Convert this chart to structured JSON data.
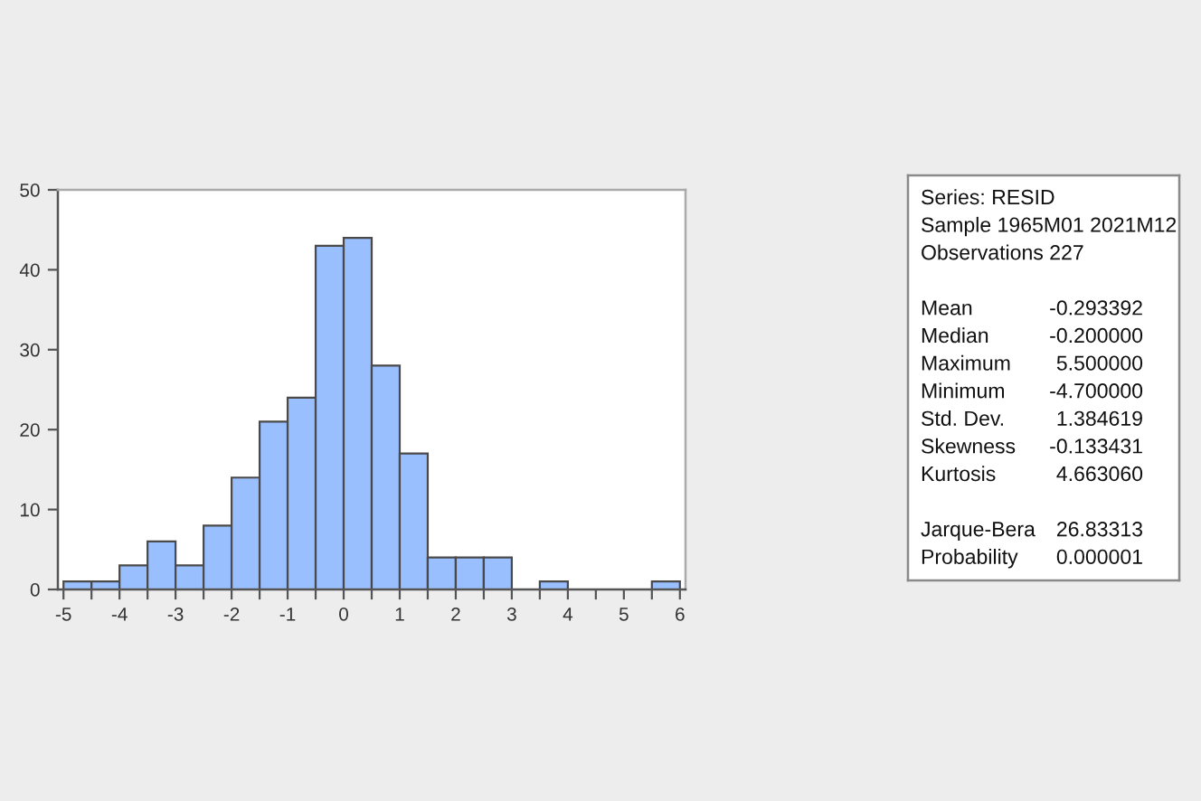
{
  "chart_data": [
    {
      "type": "histogram",
      "bins": [
        -5,
        -4.5,
        -4,
        -3.5,
        -3,
        -2.5,
        -2,
        -1.5,
        -1,
        -0.5,
        0,
        0.5,
        1,
        1.5,
        2,
        2.5,
        3,
        3.5,
        4,
        4.5,
        5,
        5.5,
        6
      ],
      "values": [
        1,
        1,
        3,
        6,
        3,
        8,
        14,
        21,
        24,
        43,
        44,
        28,
        17,
        4,
        4,
        4,
        0,
        1,
        0,
        0,
        0,
        1
      ],
      "color": "#99bfff",
      "xlim": [
        -5.1,
        6.1
      ],
      "ylim": [
        0,
        50
      ],
      "xticks": [
        -5,
        {
          "value": -4.5,
          "label": null
        },
        -4,
        {
          "value": -3.5,
          "label": null
        },
        -3,
        {
          "value": -2.5,
          "label": null
        },
        -2,
        {
          "value": -1.5,
          "label": null
        },
        -1,
        {
          "value": -0.5,
          "label": null
        },
        0,
        {
          "value": 0.5,
          "label": null
        },
        1,
        {
          "value": 1.5,
          "label": null
        },
        2,
        {
          "value": 2.5,
          "label": null
        },
        3,
        {
          "value": 3.5,
          "label": null
        },
        4,
        {
          "value": 4.5,
          "label": null
        },
        5,
        {
          "value": 5.5,
          "label": null
        },
        6
      ],
      "yticks": [
        0,
        10,
        20,
        30,
        40,
        50
      ],
      "grid": false
    },
    {
      "type": "other",
      "annotations": [
        "Series: RESID",
        "Sample 1965M01 2021M12",
        "Observations 227",
        "Mean\t-0.293392",
        "Median\t-0.200000",
        "Maximum\t5.500000",
        "Minimum\t-4.700000",
        "Std. Dev.\t1.384619",
        "Skewness\t-0.133431",
        "Kurtosis\t4.663060",
        "Jarque-Bera\t26.83313",
        "Probability\t0.000001"
      ]
    }
  ]
}
